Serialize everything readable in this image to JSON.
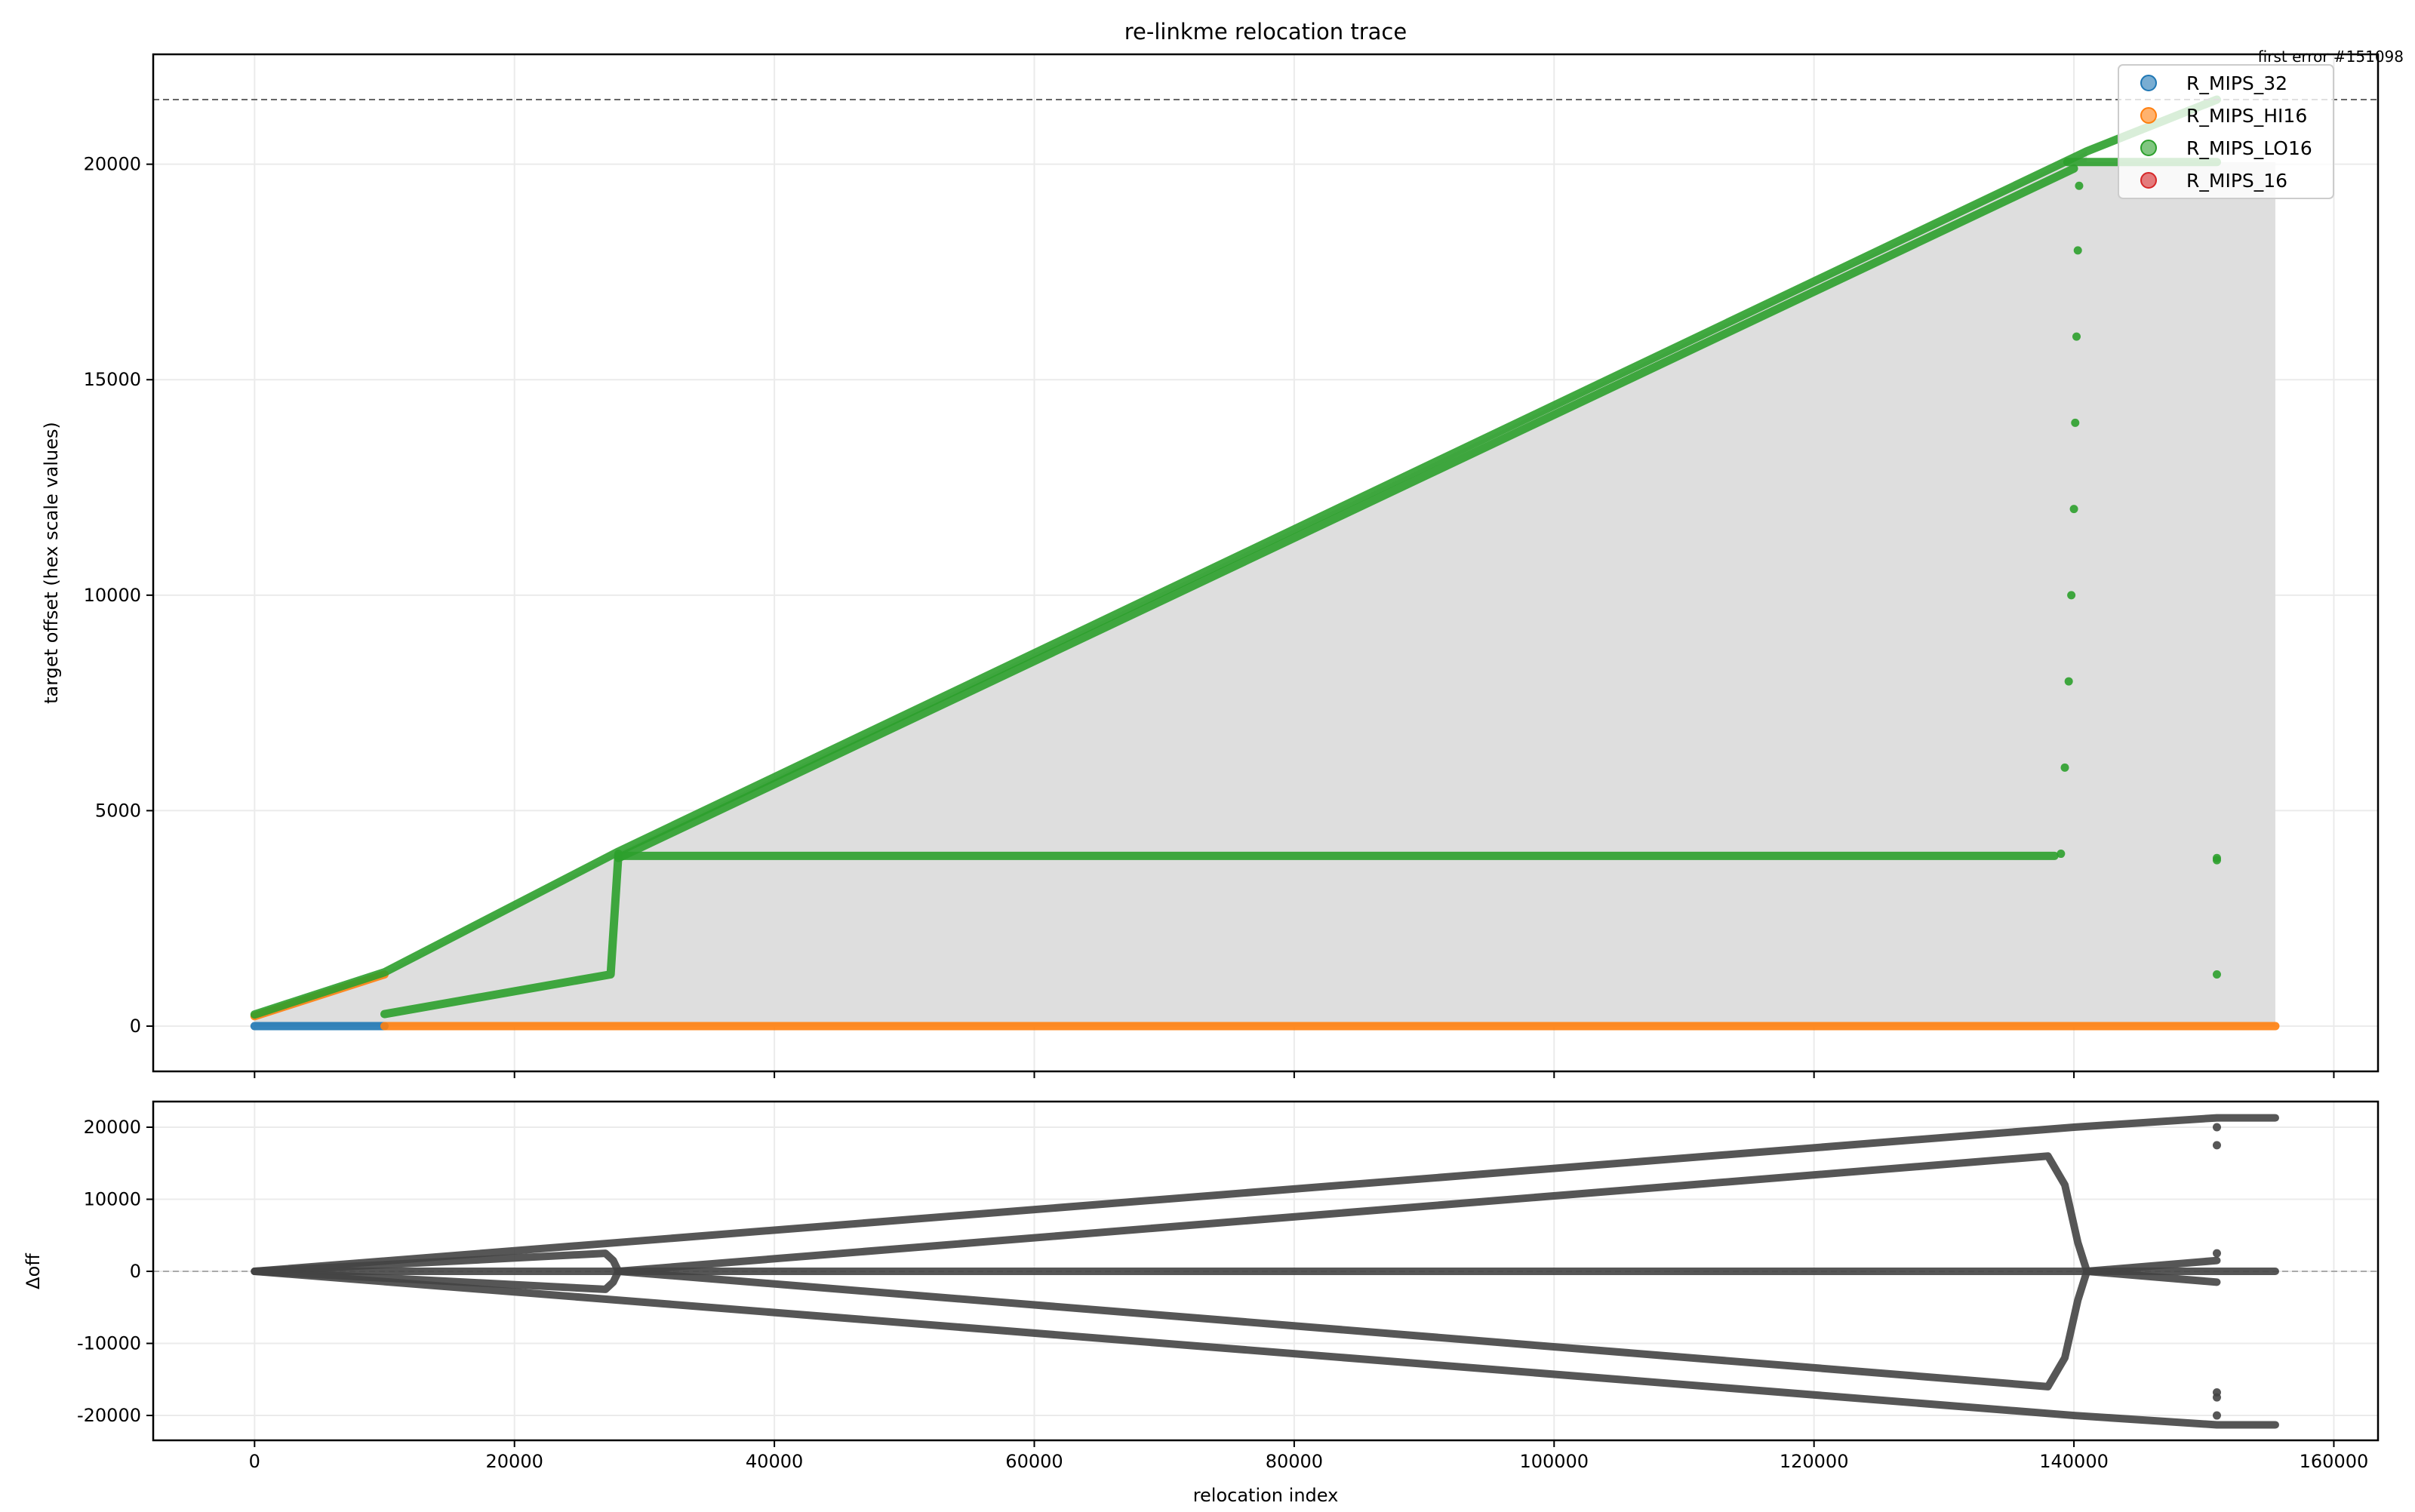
{
  "chart_data": [
    {
      "type": "scatter",
      "title": "re-linkme relocation trace",
      "xlabel": "",
      "ylabel": "target offset (hex scale values)",
      "xlim": [
        -7800,
        163400
      ],
      "ylim": [
        -1050,
        22550
      ],
      "xticks": [
        0,
        20000,
        40000,
        60000,
        80000,
        100000,
        120000,
        140000,
        160000
      ],
      "yticks": [
        0,
        5000,
        10000,
        15000,
        20000
      ],
      "grid": true,
      "legend": "top-right",
      "threshold": 21500,
      "annotation": "first error #151098",
      "series": [
        {
          "name": "R_MIPS_32",
          "color": "#1f77b4",
          "segments": [
            [
              [
                0,
                0
              ],
              [
                10000,
                0
              ]
            ]
          ],
          "points": []
        },
        {
          "name": "R_MIPS_HI16",
          "color": "#ff7f0e",
          "segments": [
            [
              [
                10000,
                0
              ],
              [
                155500,
                0
              ]
            ],
            [
              [
                0,
                230
              ],
              [
                10000,
                1200
              ]
            ]
          ],
          "points": []
        },
        {
          "name": "R_MIPS_LO16",
          "color": "#2ca02c",
          "segments": [
            [
              [
                0,
                270
              ],
              [
                10000,
                1250
              ],
              [
                28000,
                4050
              ],
              [
                141000,
                20300
              ],
              [
                151000,
                21500
              ]
            ],
            [
              [
                28000,
                3900
              ],
              [
                140000,
                19900
              ]
            ],
            [
              [
                139500,
                20050
              ],
              [
                151000,
                20050
              ]
            ],
            [
              [
                10000,
                280
              ],
              [
                27400,
                1200
              ],
              [
                28000,
                4000
              ]
            ],
            [
              [
                28000,
                3950
              ],
              [
                138500,
                3950
              ]
            ]
          ],
          "points": [
            [
              139000,
              4000
            ],
            [
              139300,
              6000
            ],
            [
              139600,
              8000
            ],
            [
              139800,
              10000
            ],
            [
              140000,
              12000
            ],
            [
              140100,
              14000
            ],
            [
              140200,
              16000
            ],
            [
              140300,
              18000
            ],
            [
              140400,
              19500
            ],
            [
              151000,
              3900
            ],
            [
              151000,
              3850
            ],
            [
              151000,
              1200
            ]
          ]
        },
        {
          "name": "R_MIPS_16",
          "color": "#d62728",
          "segments": [],
          "points": []
        }
      ]
    },
    {
      "type": "scatter",
      "title": "",
      "xlabel": "relocation index",
      "ylabel": "Δoff",
      "xlim": [
        -7800,
        163400
      ],
      "ylim": [
        -23450,
        23560
      ],
      "xticks": [
        0,
        20000,
        40000,
        60000,
        80000,
        100000,
        120000,
        140000,
        160000
      ],
      "yticks": [
        -20000,
        -10000,
        0,
        10000,
        20000
      ],
      "grid": true,
      "zero_line": 0,
      "series": [
        {
          "color": "#444444",
          "segments": [
            [
              [
                0,
                0
              ],
              [
                28000,
                4000
              ],
              [
                140000,
                20000
              ],
              [
                151000,
                21300
              ],
              [
                155500,
                21300
              ]
            ],
            [
              [
                0,
                0
              ],
              [
                28000,
                -4000
              ],
              [
                140000,
                -20000
              ],
              [
                151000,
                -21300
              ],
              [
                155500,
                -21300
              ]
            ],
            [
              [
                0,
                0
              ],
              [
                27000,
                2500
              ],
              [
                27600,
                1500
              ],
              [
                28000,
                0
              ]
            ],
            [
              [
                0,
                0
              ],
              [
                27000,
                -2500
              ],
              [
                27600,
                -1500
              ],
              [
                28000,
                0
              ]
            ],
            [
              [
                28000,
                0
              ],
              [
                138000,
                16000
              ],
              [
                139300,
                12000
              ],
              [
                140300,
                4000
              ],
              [
                141000,
                0
              ]
            ],
            [
              [
                28000,
                0
              ],
              [
                138000,
                -16000
              ],
              [
                139300,
                -12000
              ],
              [
                140300,
                -4000
              ],
              [
                141000,
                0
              ]
            ],
            [
              [
                0,
                0
              ],
              [
                155500,
                0
              ]
            ],
            [
              [
                141000,
                0
              ],
              [
                151000,
                1500
              ]
            ],
            [
              [
                141000,
                0
              ],
              [
                151000,
                -1500
              ]
            ]
          ],
          "points": [
            [
              151000,
              20000
            ],
            [
              151000,
              17500
            ],
            [
              151000,
              -17500
            ],
            [
              151000,
              -20000
            ],
            [
              151000,
              2500
            ],
            [
              151000,
              -16800
            ]
          ]
        }
      ]
    }
  ]
}
